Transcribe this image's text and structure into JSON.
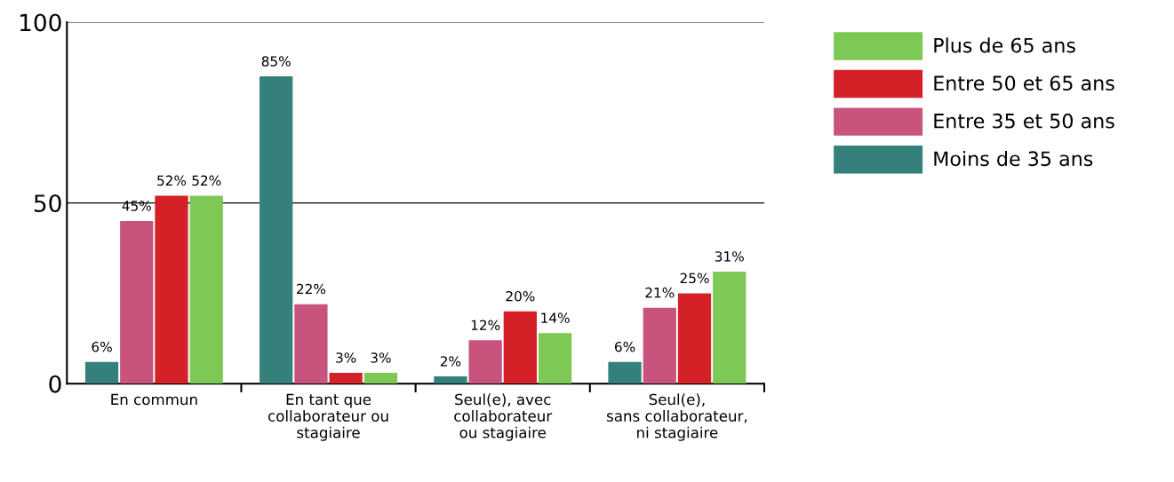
{
  "chart_data": {
    "type": "bar",
    "categories": [
      "En commun",
      "En tant que\ncollaborateur ou\nstagiaire",
      "Seul(e), avec\ncollaborateur\nou stagiaire",
      "Seul(e),\nsans collaborateur,\nni stagiaire"
    ],
    "series": [
      {
        "name": "Moins de 35 ans",
        "color": "#35807a",
        "values": [
          6,
          85,
          2,
          6
        ],
        "value_labels": [
          "6%",
          "85%",
          "2%",
          "6%"
        ]
      },
      {
        "name": "Entre 35 et 50 ans",
        "color": "#c8547e",
        "values": [
          45,
          22,
          12,
          21
        ],
        "value_labels": [
          "45%",
          "22%",
          "12%",
          "21%"
        ]
      },
      {
        "name": "Entre 50 et 65 ans",
        "color": "#d42027",
        "values": [
          52,
          3,
          20,
          25
        ],
        "value_labels": [
          "52%",
          "3%",
          "20%",
          "25%"
        ]
      },
      {
        "name": "Plus de 65 ans",
        "color": "#7ec855",
        "values": [
          52,
          3,
          14,
          31
        ],
        "value_labels": [
          "52%",
          "3%",
          "14%",
          "31%"
        ]
      }
    ],
    "ylim": [
      0,
      100
    ],
    "yticks": [
      0,
      50,
      100
    ],
    "grid": "y",
    "legend": "top right"
  }
}
